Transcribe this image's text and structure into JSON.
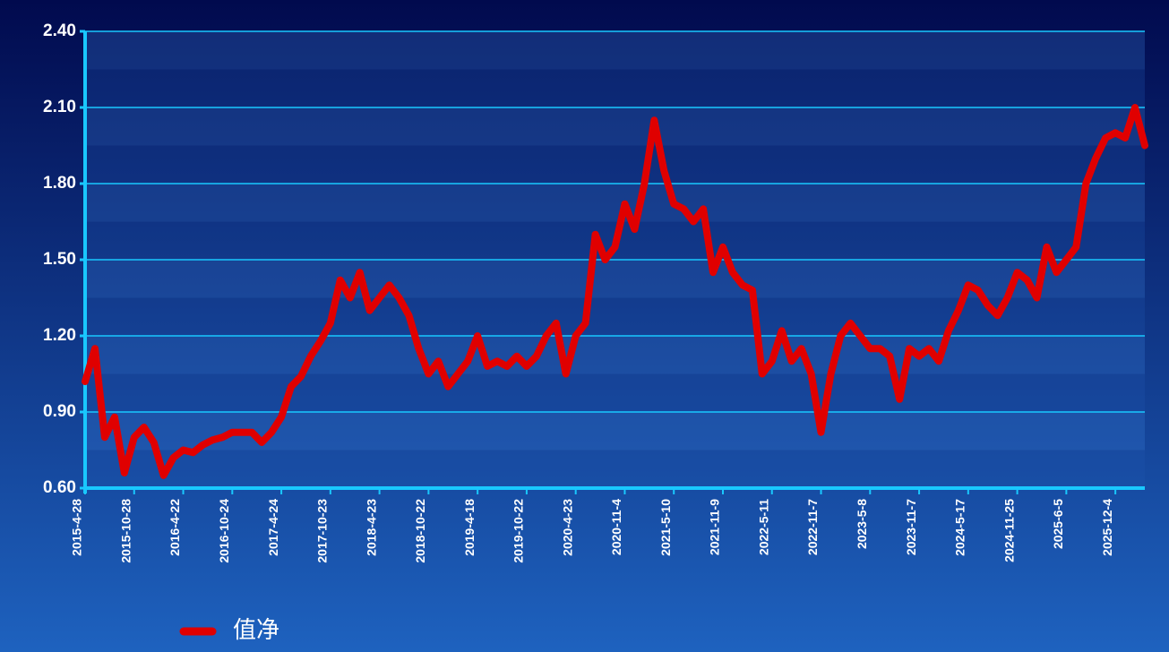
{
  "chart_data": {
    "type": "line",
    "categories": [
      "2015-4-28",
      null,
      null,
      null,
      null,
      "2015-10-28",
      null,
      null,
      null,
      null,
      "2016-4-22",
      null,
      null,
      null,
      null,
      "2016-10-24",
      null,
      null,
      null,
      null,
      "2017-4-24",
      null,
      null,
      null,
      null,
      "2017-10-23",
      null,
      null,
      null,
      null,
      "2018-4-23",
      null,
      null,
      null,
      null,
      "2018-10-22",
      null,
      null,
      null,
      null,
      "2019-4-18",
      null,
      null,
      null,
      null,
      "2019-10-22",
      null,
      null,
      null,
      null,
      "2020-4-23",
      null,
      null,
      null,
      null,
      "2020-11-4",
      null,
      null,
      null,
      null,
      "2021-5-10",
      null,
      null,
      null,
      null,
      "2021-11-9",
      null,
      null,
      null,
      null,
      "2022-5-11",
      null,
      null,
      null,
      null,
      "2022-11-7",
      null,
      null,
      null,
      null,
      "2023-5-8",
      null,
      null,
      null,
      null,
      "2023-11-7",
      null,
      null,
      null,
      null,
      "2024-5-17",
      null,
      null,
      null,
      null,
      "2024-11-25",
      null,
      null,
      null,
      null,
      "2025-6-5",
      null,
      null,
      null,
      null,
      "2025-12-4",
      null,
      null,
      null
    ],
    "series": [
      {
        "name": "值净",
        "color": "#e00000",
        "values": [
          1.02,
          1.15,
          0.8,
          0.88,
          0.66,
          0.8,
          0.84,
          0.78,
          0.65,
          0.72,
          0.75,
          0.74,
          0.77,
          0.79,
          0.8,
          0.82,
          0.82,
          0.82,
          0.78,
          0.82,
          0.88,
          1.0,
          1.04,
          1.12,
          1.18,
          1.25,
          1.42,
          1.35,
          1.45,
          1.3,
          1.35,
          1.4,
          1.35,
          1.28,
          1.15,
          1.05,
          1.1,
          1.0,
          1.05,
          1.1,
          1.2,
          1.08,
          1.1,
          1.08,
          1.12,
          1.08,
          1.12,
          1.2,
          1.25,
          1.05,
          1.2,
          1.25,
          1.6,
          1.5,
          1.55,
          1.72,
          1.62,
          1.8,
          2.05,
          1.85,
          1.72,
          1.7,
          1.65,
          1.7,
          1.45,
          1.55,
          1.45,
          1.4,
          1.38,
          1.05,
          1.1,
          1.22,
          1.1,
          1.15,
          1.05,
          0.82,
          1.05,
          1.2,
          1.25,
          1.2,
          1.15,
          1.15,
          1.12,
          0.95,
          1.15,
          1.12,
          1.15,
          1.1,
          1.22,
          1.3,
          1.4,
          1.38,
          1.32,
          1.28,
          1.35,
          1.45,
          1.42,
          1.35,
          1.55,
          1.45,
          1.5,
          1.55,
          1.8,
          1.9,
          1.98,
          2.0,
          1.98,
          2.1,
          1.95
        ]
      }
    ],
    "ylim": [
      0.6,
      2.4
    ],
    "yticks": [
      {
        "value": 0.6,
        "label": "0.60"
      },
      {
        "value": 0.9,
        "label": "0.90"
      },
      {
        "value": 1.2,
        "label": "1.20"
      },
      {
        "value": 1.5,
        "label": "1.50"
      },
      {
        "value": 1.8,
        "label": "1.80"
      },
      {
        "value": 2.1,
        "label": "2.10"
      },
      {
        "value": 2.4,
        "label": "2.40"
      }
    ],
    "grid": true,
    "legend": "bottom-left"
  }
}
